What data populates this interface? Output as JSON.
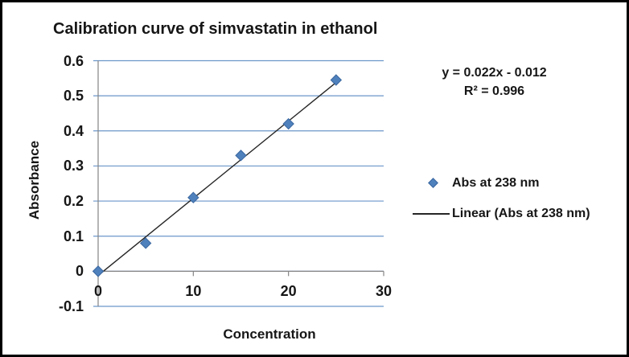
{
  "chart_data": {
    "type": "scatter",
    "title": "Calibration curve of simvastatin in ethanol",
    "xlabel": "Concentration",
    "ylabel": "Absorbance",
    "series": [
      {
        "name": "Abs at 238 nm",
        "x": [
          0,
          5,
          10,
          15,
          20,
          25
        ],
        "y": [
          0,
          0.08,
          0.21,
          0.33,
          0.42,
          0.545
        ]
      }
    ],
    "xlim": [
      0,
      30
    ],
    "ylim": [
      -0.1,
      0.6
    ],
    "xticks": [
      0,
      10,
      20,
      30
    ],
    "xtick_labels": [
      "0",
      "10",
      "20",
      "30"
    ],
    "ytick_values": [
      0.6,
      0.5,
      0.4,
      0.3,
      0.2,
      0.1,
      0,
      -0.1
    ],
    "ytick_labels": [
      "0.6",
      "0.5",
      "0.4",
      "0.3",
      "0.2",
      "0.1",
      "0",
      "-0.1"
    ],
    "grid": true,
    "grid_axis": "y",
    "trendline": {
      "slope": 0.022,
      "intercept": -0.012,
      "x_start": 0,
      "x_end": 25,
      "equation": "y = 0.022x - 0.012",
      "r_squared": "R² = 0.996"
    },
    "legend": {
      "position": "right",
      "items": [
        {
          "label": "Abs at 238 nm",
          "marker": "diamond"
        },
        {
          "label": "Linear (Abs at 238 nm)",
          "marker": "line"
        }
      ]
    },
    "colors": {
      "marker": "#4f81bd",
      "marker_border": "#3a679f",
      "gridline": "#6b96c9",
      "axis": "#848484",
      "trendline": "#262626",
      "text": "#161616"
    }
  }
}
